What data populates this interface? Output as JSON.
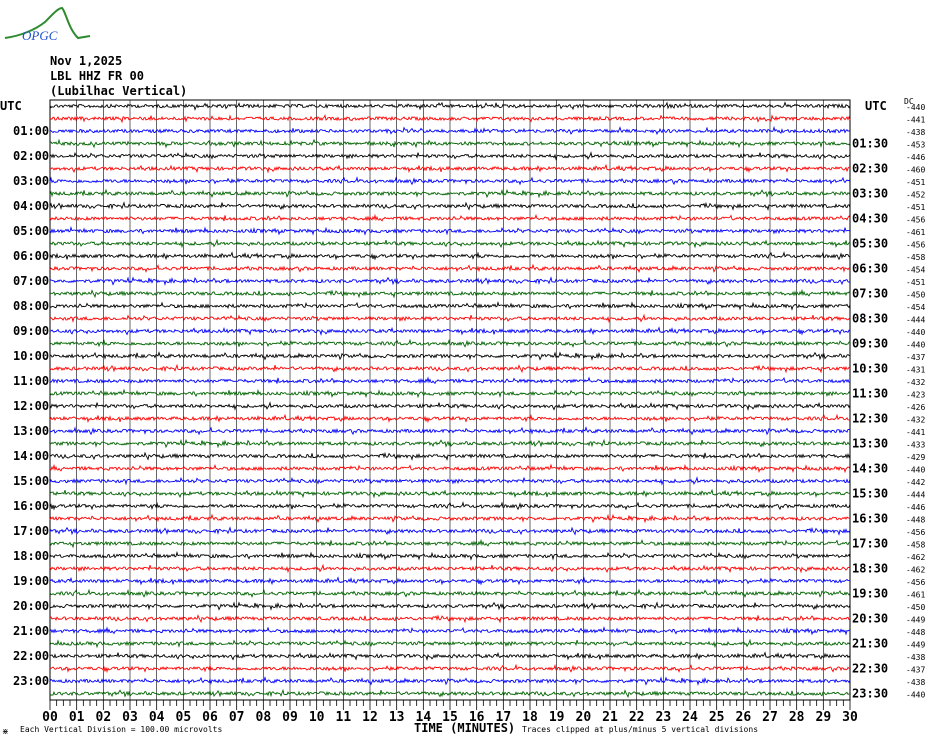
{
  "logo": {
    "text": "OPGC",
    "curve_color": "#2e8b2e",
    "text_color": "#1e4fd0"
  },
  "header": {
    "date": "Nov 1,2025",
    "station": "LBL HHZ FR 00",
    "location": "(Lubilhac Vertical)"
  },
  "chart_data": {
    "type": "line",
    "subtype": "helicorder",
    "title": "",
    "left_axis_label": "UTC",
    "right_axis_label": "UTC",
    "dc_label": "DC",
    "left_ticks": [
      "01:00",
      "02:00",
      "03:00",
      "04:00",
      "05:00",
      "06:00",
      "07:00",
      "08:00",
      "09:00",
      "10:00",
      "11:00",
      "12:00",
      "13:00",
      "14:00",
      "15:00",
      "16:00",
      "17:00",
      "18:00",
      "19:00",
      "20:00",
      "21:00",
      "22:00",
      "23:00"
    ],
    "right_ticks": [
      "01:30",
      "02:30",
      "03:30",
      "04:30",
      "05:30",
      "06:30",
      "07:30",
      "08:30",
      "09:30",
      "10:30",
      "11:30",
      "12:30",
      "13:30",
      "14:30",
      "15:30",
      "16:30",
      "17:30",
      "18:30",
      "19:30",
      "20:30",
      "21:30",
      "22:30",
      "23:30"
    ],
    "dc_offsets": [
      -440,
      -441,
      -438,
      -453,
      -446,
      -460,
      -451,
      -452,
      -451,
      -456,
      -461,
      -456,
      -458,
      -454,
      -451,
      -450,
      -454,
      -444,
      -440,
      -440,
      -437,
      -431,
      -432,
      -423,
      -426,
      -432,
      -441,
      -433,
      -429,
      -440,
      -442,
      -444,
      -446,
      -448,
      -456,
      -458,
      -462,
      -462,
      -456,
      -461,
      -450,
      -449,
      -448,
      -449,
      -438,
      -437,
      -438,
      -440
    ],
    "trace_colors": [
      "#000000",
      "#ff0000",
      "#0000ff",
      "#006400"
    ],
    "rows": 48,
    "minutes_per_row": 30,
    "x_ticks": [
      "00",
      "01",
      "02",
      "03",
      "04",
      "05",
      "06",
      "07",
      "08",
      "09",
      "10",
      "11",
      "12",
      "13",
      "14",
      "15",
      "16",
      "17",
      "18",
      "19",
      "20",
      "21",
      "22",
      "23",
      "24",
      "25",
      "26",
      "27",
      "28",
      "29",
      "30"
    ],
    "xlabel": "TIME (MINUTES)",
    "xlim": [
      0,
      30
    ],
    "grid": true,
    "scale_note": "Each Vertical Division =  100.00 microvolts",
    "clip_note": "Traces clipped at plus/minus 5 vertical divisions"
  }
}
